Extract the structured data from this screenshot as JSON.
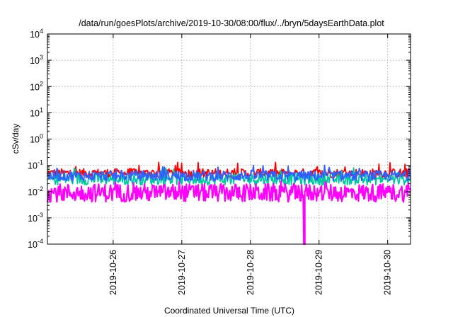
{
  "chart_data": {
    "type": "line",
    "title": "/data/run/goesPlots/archive/2019-10-30/08:00/flux/../bryn/5daysEarthData.plot",
    "xlabel": "Coordinated Universal Time (UTC)",
    "ylabel": "cSv/day",
    "yscale": "log",
    "ylim": [
      0.0001,
      10000
    ],
    "xlim": [
      "2019-10-25T01:00",
      "2019-10-30T08:00"
    ],
    "grid": true,
    "ytick_labels": [
      {
        "base": "10",
        "exp": "-4"
      },
      {
        "base": "10",
        "exp": "-3"
      },
      {
        "base": "10",
        "exp": "-2"
      },
      {
        "base": "10",
        "exp": "-1"
      },
      {
        "base": "10",
        "exp": "0"
      },
      {
        "base": "10",
        "exp": "1"
      },
      {
        "base": "10",
        "exp": "2"
      },
      {
        "base": "10",
        "exp": "3"
      },
      {
        "base": "10",
        "exp": "4"
      }
    ],
    "xtick_labels": [
      "2019-10-26",
      "2019-10-27",
      "2019-10-28",
      "2019-10-29",
      "2019-10-30"
    ],
    "xtick_values": [
      "2019-10-26T00:00",
      "2019-10-27T00:00",
      "2019-10-28T00:00",
      "2019-10-29T00:00",
      "2019-10-30T00:00"
    ],
    "series": [
      {
        "color": "#ff0000",
        "baseline": 0.05,
        "spread": 0.35,
        "spike_max": 0.13
      },
      {
        "color": "#00c8a0",
        "baseline": 0.03,
        "spread": 0.45,
        "spike_max": 0.08
      },
      {
        "color": "#3060ff",
        "baseline": 0.04,
        "spread": 0.4,
        "spike_max": 0.1
      },
      {
        "color": "#ff00ff",
        "baseline": 0.009,
        "spread": 0.7,
        "spike_max": 0.06,
        "dropout": {
          "time": "2019-10-28T18:40",
          "min": 0.0001
        }
      }
    ]
  }
}
